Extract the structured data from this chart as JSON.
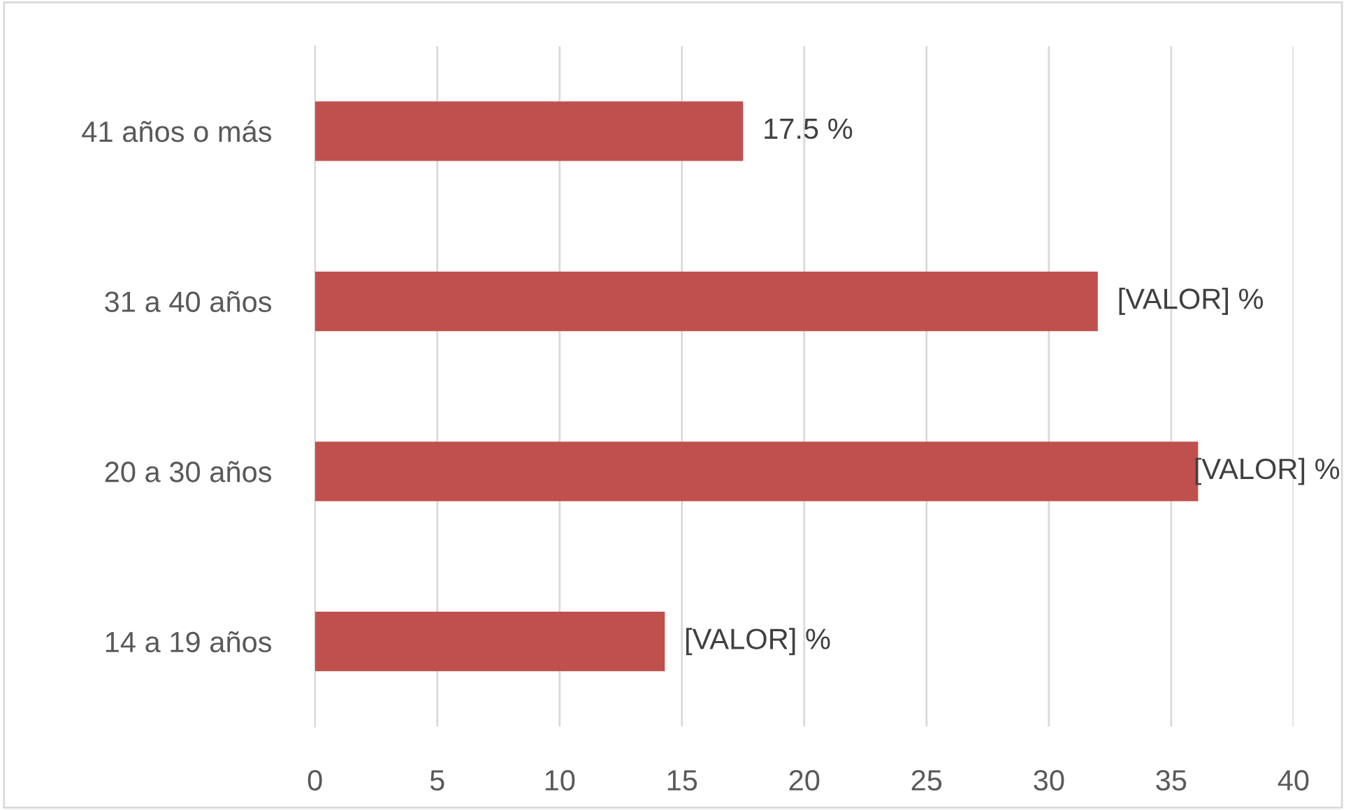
{
  "chart_data": {
    "type": "bar",
    "orientation": "horizontal",
    "categories": [
      "41 años o más",
      "31 a 40 años",
      "20 a 30 años",
      "14 a 19 años"
    ],
    "values": [
      17.5,
      32.0,
      36.1,
      14.3
    ],
    "value_labels": [
      "17.5 %",
      "[VALOR] %",
      "[VALOR] %",
      "[VALOR] %"
    ],
    "color": "#c0504d",
    "xlim": [
      0,
      40
    ],
    "xticks": [
      0,
      5,
      10,
      15,
      20,
      25,
      30,
      35,
      40
    ],
    "grid": "x",
    "legend": false
  }
}
